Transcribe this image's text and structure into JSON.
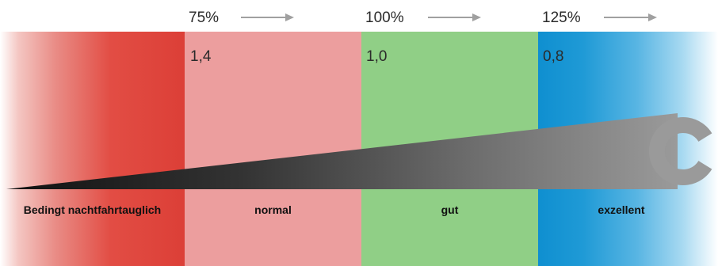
{
  "header": {
    "percentages": [
      {
        "label": "75%"
      },
      {
        "label": "100%"
      },
      {
        "label": "125%"
      }
    ]
  },
  "zones": [
    {
      "name": "Bedingt nachtfahrtauglich",
      "value": "",
      "color": "#dc3f37"
    },
    {
      "name": "normal",
      "value": "1,4",
      "color": "#ec9e9e"
    },
    {
      "name": "gut",
      "value": "1,0",
      "color": "#90cf86"
    },
    {
      "name": "exzellent",
      "value": "0,8",
      "color": "#0f8fd0"
    }
  ],
  "icons": {
    "arrow": "right-arrow-icon",
    "optotype": "landolt-c-icon"
  },
  "colors": {
    "wedge_start": "#111111",
    "wedge_end": "#9a9a9a",
    "arrow": "#a0a0a0",
    "landolt": "#9a9a9a"
  }
}
